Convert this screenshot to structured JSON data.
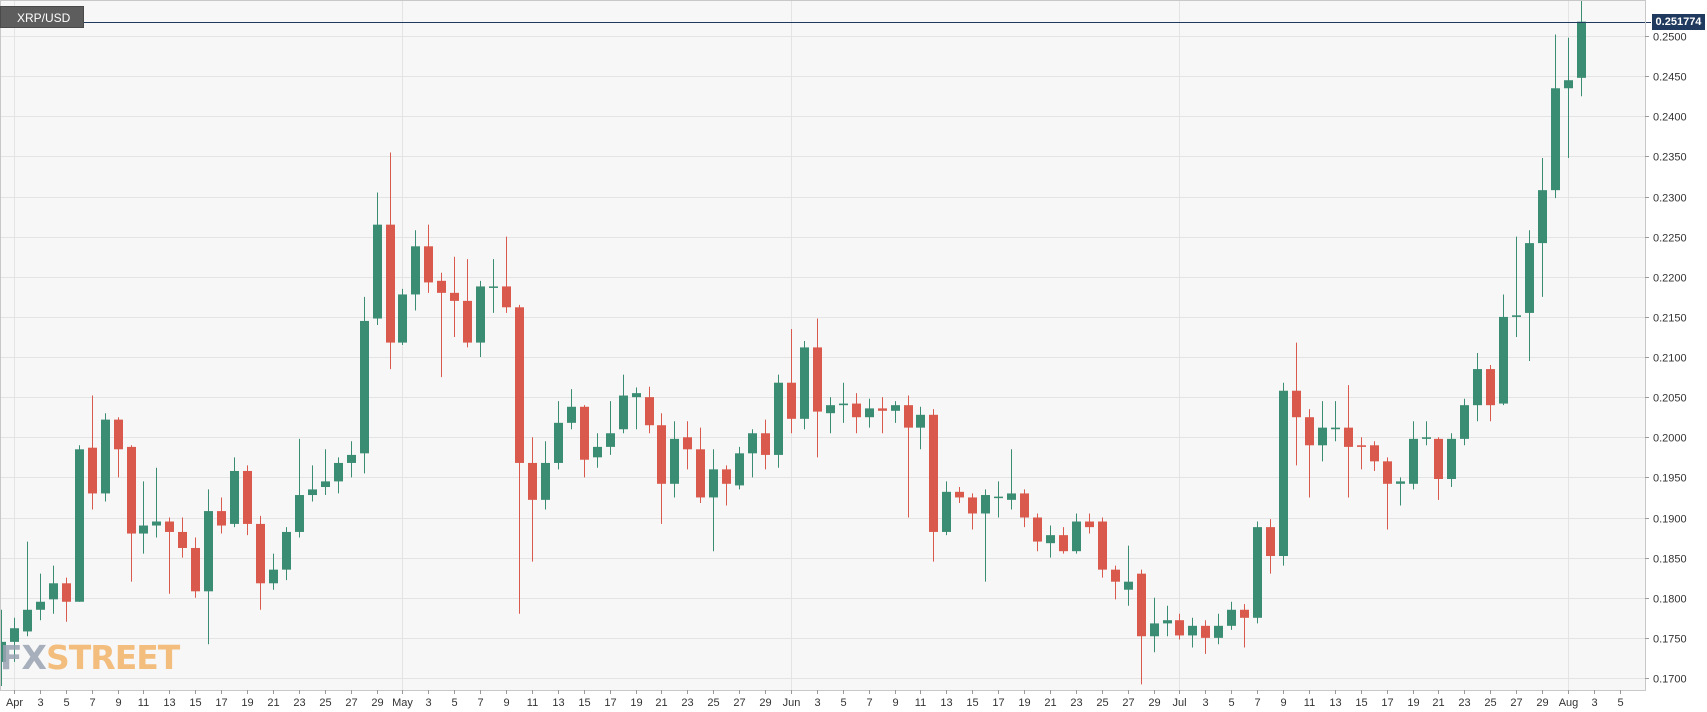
{
  "symbol": "XRP/USD",
  "watermark": {
    "fx": "FX",
    "street": "STREET"
  },
  "last_price_label": "0.251774",
  "colors": {
    "up": "#3a8c72",
    "down": "#d9594c",
    "grid": "#e4e4e4",
    "axis_text": "#333333",
    "price_line": "#1f3a5e",
    "background": "#f7f7f7"
  },
  "chart_data": {
    "type": "candlestick",
    "last_price": 0.251774,
    "ylim": [
      0.1685,
      0.2545
    ],
    "y_ticks": [
      "0.1700",
      "0.1750",
      "0.1800",
      "0.1850",
      "0.1900",
      "0.1950",
      "0.2000",
      "0.2050",
      "0.2100",
      "0.2150",
      "0.2200",
      "0.2250",
      "0.2300",
      "0.2350",
      "0.2400",
      "0.2450",
      "0.2500"
    ],
    "x_tick_labels": [
      {
        "label": "Apr",
        "month": true
      },
      {
        "label": "3"
      },
      {
        "label": "5"
      },
      {
        "label": "7"
      },
      {
        "label": "9"
      },
      {
        "label": "11"
      },
      {
        "label": "13"
      },
      {
        "label": "15"
      },
      {
        "label": "17"
      },
      {
        "label": "19"
      },
      {
        "label": "21"
      },
      {
        "label": "23"
      },
      {
        "label": "25"
      },
      {
        "label": "27"
      },
      {
        "label": "29"
      },
      {
        "label": "May",
        "month": true
      },
      {
        "label": "3"
      },
      {
        "label": "5"
      },
      {
        "label": "7"
      },
      {
        "label": "9"
      },
      {
        "label": "11"
      },
      {
        "label": "13"
      },
      {
        "label": "15"
      },
      {
        "label": "17"
      },
      {
        "label": "19"
      },
      {
        "label": "21"
      },
      {
        "label": "23"
      },
      {
        "label": "25"
      },
      {
        "label": "27"
      },
      {
        "label": "29"
      },
      {
        "label": "Jun",
        "month": true
      },
      {
        "label": "3"
      },
      {
        "label": "5"
      },
      {
        "label": "7"
      },
      {
        "label": "9"
      },
      {
        "label": "11"
      },
      {
        "label": "13"
      },
      {
        "label": "15"
      },
      {
        "label": "17"
      },
      {
        "label": "19"
      },
      {
        "label": "21"
      },
      {
        "label": "23"
      },
      {
        "label": "25"
      },
      {
        "label": "27"
      },
      {
        "label": "29"
      },
      {
        "label": "Jul",
        "month": true
      },
      {
        "label": "3"
      },
      {
        "label": "5"
      },
      {
        "label": "7"
      },
      {
        "label": "9"
      },
      {
        "label": "11"
      },
      {
        "label": "13"
      },
      {
        "label": "15"
      },
      {
        "label": "17"
      },
      {
        "label": "19"
      },
      {
        "label": "21"
      },
      {
        "label": "23"
      },
      {
        "label": "25"
      },
      {
        "label": "27"
      },
      {
        "label": "29"
      },
      {
        "label": "Aug",
        "month": true
      },
      {
        "label": "3"
      },
      {
        "label": "5"
      }
    ],
    "candles": [
      {
        "date": "2020-03-31",
        "o": 0.172,
        "h": 0.1785,
        "l": 0.169,
        "c": 0.1745
      },
      {
        "date": "2020-04-01",
        "o": 0.1745,
        "h": 0.1775,
        "l": 0.172,
        "c": 0.1762
      },
      {
        "date": "2020-04-02",
        "o": 0.1758,
        "h": 0.187,
        "l": 0.1752,
        "c": 0.1785
      },
      {
        "date": "2020-04-03",
        "o": 0.1785,
        "h": 0.183,
        "l": 0.1772,
        "c": 0.1795
      },
      {
        "date": "2020-04-04",
        "o": 0.1798,
        "h": 0.184,
        "l": 0.178,
        "c": 0.1818
      },
      {
        "date": "2020-04-05",
        "o": 0.1818,
        "h": 0.1825,
        "l": 0.177,
        "c": 0.1795
      },
      {
        "date": "2020-04-06",
        "o": 0.1795,
        "h": 0.199,
        "l": 0.1795,
        "c": 0.1985
      },
      {
        "date": "2020-04-07",
        "o": 0.1987,
        "h": 0.2052,
        "l": 0.191,
        "c": 0.193
      },
      {
        "date": "2020-04-08",
        "o": 0.193,
        "h": 0.203,
        "l": 0.192,
        "c": 0.2022
      },
      {
        "date": "2020-04-09",
        "o": 0.2022,
        "h": 0.2025,
        "l": 0.195,
        "c": 0.1985
      },
      {
        "date": "2020-04-10",
        "o": 0.1988,
        "h": 0.199,
        "l": 0.182,
        "c": 0.188
      },
      {
        "date": "2020-04-11",
        "o": 0.188,
        "h": 0.1945,
        "l": 0.1855,
        "c": 0.189
      },
      {
        "date": "2020-04-12",
        "o": 0.189,
        "h": 0.1962,
        "l": 0.1875,
        "c": 0.1895
      },
      {
        "date": "2020-04-13",
        "o": 0.1895,
        "h": 0.19,
        "l": 0.1805,
        "c": 0.1882
      },
      {
        "date": "2020-04-14",
        "o": 0.1882,
        "h": 0.19,
        "l": 0.185,
        "c": 0.1862
      },
      {
        "date": "2020-04-15",
        "o": 0.1862,
        "h": 0.1875,
        "l": 0.18,
        "c": 0.1808
      },
      {
        "date": "2020-04-16",
        "o": 0.1808,
        "h": 0.1935,
        "l": 0.1742,
        "c": 0.1908
      },
      {
        "date": "2020-04-17",
        "o": 0.1908,
        "h": 0.1925,
        "l": 0.188,
        "c": 0.189
      },
      {
        "date": "2020-04-18",
        "o": 0.1892,
        "h": 0.1975,
        "l": 0.1888,
        "c": 0.1958
      },
      {
        "date": "2020-04-19",
        "o": 0.1958,
        "h": 0.1965,
        "l": 0.1878,
        "c": 0.1892
      },
      {
        "date": "2020-04-20",
        "o": 0.1892,
        "h": 0.1902,
        "l": 0.1785,
        "c": 0.1818
      },
      {
        "date": "2020-04-21",
        "o": 0.1818,
        "h": 0.1855,
        "l": 0.181,
        "c": 0.1835
      },
      {
        "date": "2020-04-22",
        "o": 0.1835,
        "h": 0.1888,
        "l": 0.1822,
        "c": 0.1882
      },
      {
        "date": "2020-04-23",
        "o": 0.1882,
        "h": 0.1998,
        "l": 0.1875,
        "c": 0.1928
      },
      {
        "date": "2020-04-24",
        "o": 0.1928,
        "h": 0.1965,
        "l": 0.192,
        "c": 0.1935
      },
      {
        "date": "2020-04-25",
        "o": 0.1938,
        "h": 0.1985,
        "l": 0.1928,
        "c": 0.1945
      },
      {
        "date": "2020-04-26",
        "o": 0.1945,
        "h": 0.1975,
        "l": 0.193,
        "c": 0.1968
      },
      {
        "date": "2020-04-27",
        "o": 0.1968,
        "h": 0.1995,
        "l": 0.195,
        "c": 0.1978
      },
      {
        "date": "2020-04-28",
        "o": 0.198,
        "h": 0.2175,
        "l": 0.1955,
        "c": 0.2145
      },
      {
        "date": "2020-04-29",
        "o": 0.2148,
        "h": 0.2305,
        "l": 0.214,
        "c": 0.2265
      },
      {
        "date": "2020-04-30",
        "o": 0.2265,
        "h": 0.2355,
        "l": 0.2085,
        "c": 0.2118
      },
      {
        "date": "2020-05-01",
        "o": 0.2118,
        "h": 0.2185,
        "l": 0.2115,
        "c": 0.2178
      },
      {
        "date": "2020-05-02",
        "o": 0.2178,
        "h": 0.2258,
        "l": 0.2158,
        "c": 0.2238
      },
      {
        "date": "2020-05-03",
        "o": 0.2238,
        "h": 0.2265,
        "l": 0.218,
        "c": 0.2193
      },
      {
        "date": "2020-05-04",
        "o": 0.2195,
        "h": 0.2205,
        "l": 0.2075,
        "c": 0.218
      },
      {
        "date": "2020-05-05",
        "o": 0.218,
        "h": 0.2225,
        "l": 0.2125,
        "c": 0.217
      },
      {
        "date": "2020-05-06",
        "o": 0.217,
        "h": 0.2222,
        "l": 0.2112,
        "c": 0.2118
      },
      {
        "date": "2020-05-07",
        "o": 0.2118,
        "h": 0.2195,
        "l": 0.21,
        "c": 0.2188
      },
      {
        "date": "2020-05-08",
        "o": 0.2188,
        "h": 0.2222,
        "l": 0.2155,
        "c": 0.2188
      },
      {
        "date": "2020-05-09",
        "o": 0.2188,
        "h": 0.225,
        "l": 0.2155,
        "c": 0.2162
      },
      {
        "date": "2020-05-10",
        "o": 0.2162,
        "h": 0.2165,
        "l": 0.178,
        "c": 0.1968
      },
      {
        "date": "2020-05-11",
        "o": 0.1968,
        "h": 0.2,
        "l": 0.1845,
        "c": 0.1922
      },
      {
        "date": "2020-05-12",
        "o": 0.1922,
        "h": 0.1995,
        "l": 0.191,
        "c": 0.1968
      },
      {
        "date": "2020-05-13",
        "o": 0.1968,
        "h": 0.2045,
        "l": 0.196,
        "c": 0.2018
      },
      {
        "date": "2020-05-14",
        "o": 0.2018,
        "h": 0.206,
        "l": 0.201,
        "c": 0.2038
      },
      {
        "date": "2020-05-15",
        "o": 0.2038,
        "h": 0.204,
        "l": 0.195,
        "c": 0.1972
      },
      {
        "date": "2020-05-16",
        "o": 0.1975,
        "h": 0.2005,
        "l": 0.1962,
        "c": 0.1988
      },
      {
        "date": "2020-05-17",
        "o": 0.1988,
        "h": 0.2045,
        "l": 0.1978,
        "c": 0.2005
      },
      {
        "date": "2020-05-18",
        "o": 0.201,
        "h": 0.2078,
        "l": 0.2005,
        "c": 0.2052
      },
      {
        "date": "2020-05-19",
        "o": 0.205,
        "h": 0.2062,
        "l": 0.201,
        "c": 0.2055
      },
      {
        "date": "2020-05-20",
        "o": 0.205,
        "h": 0.2063,
        "l": 0.2005,
        "c": 0.2015
      },
      {
        "date": "2020-05-21",
        "o": 0.2015,
        "h": 0.203,
        "l": 0.1892,
        "c": 0.1942
      },
      {
        "date": "2020-05-22",
        "o": 0.1942,
        "h": 0.202,
        "l": 0.1925,
        "c": 0.1998
      },
      {
        "date": "2020-05-23",
        "o": 0.2,
        "h": 0.202,
        "l": 0.196,
        "c": 0.1985
      },
      {
        "date": "2020-05-24",
        "o": 0.1985,
        "h": 0.2012,
        "l": 0.1918,
        "c": 0.1925
      },
      {
        "date": "2020-05-25",
        "o": 0.1925,
        "h": 0.1985,
        "l": 0.1858,
        "c": 0.196
      },
      {
        "date": "2020-05-26",
        "o": 0.196,
        "h": 0.1965,
        "l": 0.1915,
        "c": 0.1942
      },
      {
        "date": "2020-05-27",
        "o": 0.194,
        "h": 0.1988,
        "l": 0.1935,
        "c": 0.198
      },
      {
        "date": "2020-05-28",
        "o": 0.198,
        "h": 0.201,
        "l": 0.195,
        "c": 0.2005
      },
      {
        "date": "2020-05-29",
        "o": 0.2005,
        "h": 0.2022,
        "l": 0.196,
        "c": 0.1978
      },
      {
        "date": "2020-05-30",
        "o": 0.1978,
        "h": 0.2078,
        "l": 0.1962,
        "c": 0.2068
      },
      {
        "date": "2020-05-31",
        "o": 0.2068,
        "h": 0.2135,
        "l": 0.2005,
        "c": 0.2023
      },
      {
        "date": "2020-06-01",
        "o": 0.2023,
        "h": 0.212,
        "l": 0.201,
        "c": 0.2112
      },
      {
        "date": "2020-06-02",
        "o": 0.2112,
        "h": 0.2148,
        "l": 0.1975,
        "c": 0.2032
      },
      {
        "date": "2020-06-03",
        "o": 0.203,
        "h": 0.205,
        "l": 0.2005,
        "c": 0.204
      },
      {
        "date": "2020-06-04",
        "o": 0.204,
        "h": 0.2068,
        "l": 0.2018,
        "c": 0.2042
      },
      {
        "date": "2020-06-05",
        "o": 0.2042,
        "h": 0.2055,
        "l": 0.2005,
        "c": 0.2025
      },
      {
        "date": "2020-06-06",
        "o": 0.2025,
        "h": 0.2048,
        "l": 0.2012,
        "c": 0.2036
      },
      {
        "date": "2020-06-07",
        "o": 0.2036,
        "h": 0.205,
        "l": 0.2005,
        "c": 0.2033
      },
      {
        "date": "2020-06-08",
        "o": 0.2033,
        "h": 0.2045,
        "l": 0.2018,
        "c": 0.204
      },
      {
        "date": "2020-06-09",
        "o": 0.204,
        "h": 0.2052,
        "l": 0.19,
        "c": 0.2012
      },
      {
        "date": "2020-06-10",
        "o": 0.2012,
        "h": 0.2038,
        "l": 0.1985,
        "c": 0.2028
      },
      {
        "date": "2020-06-11",
        "o": 0.2028,
        "h": 0.2035,
        "l": 0.1845,
        "c": 0.1882
      },
      {
        "date": "2020-06-12",
        "o": 0.1882,
        "h": 0.1945,
        "l": 0.1878,
        "c": 0.1932
      },
      {
        "date": "2020-06-13",
        "o": 0.1932,
        "h": 0.1938,
        "l": 0.1918,
        "c": 0.1925
      },
      {
        "date": "2020-06-14",
        "o": 0.1925,
        "h": 0.193,
        "l": 0.1885,
        "c": 0.1905
      },
      {
        "date": "2020-06-15",
        "o": 0.1905,
        "h": 0.1935,
        "l": 0.182,
        "c": 0.1928
      },
      {
        "date": "2020-06-16",
        "o": 0.1926,
        "h": 0.1945,
        "l": 0.19,
        "c": 0.1926
      },
      {
        "date": "2020-06-17",
        "o": 0.1922,
        "h": 0.1985,
        "l": 0.191,
        "c": 0.193
      },
      {
        "date": "2020-06-18",
        "o": 0.193,
        "h": 0.1935,
        "l": 0.1888,
        "c": 0.19
      },
      {
        "date": "2020-06-19",
        "o": 0.19,
        "h": 0.1905,
        "l": 0.1858,
        "c": 0.187
      },
      {
        "date": "2020-06-20",
        "o": 0.1868,
        "h": 0.189,
        "l": 0.185,
        "c": 0.1878
      },
      {
        "date": "2020-06-21",
        "o": 0.1878,
        "h": 0.1888,
        "l": 0.1855,
        "c": 0.1858
      },
      {
        "date": "2020-06-22",
        "o": 0.1858,
        "h": 0.1905,
        "l": 0.1855,
        "c": 0.1895
      },
      {
        "date": "2020-06-23",
        "o": 0.1895,
        "h": 0.1905,
        "l": 0.188,
        "c": 0.1888
      },
      {
        "date": "2020-06-24",
        "o": 0.1895,
        "h": 0.19,
        "l": 0.1825,
        "c": 0.1835
      },
      {
        "date": "2020-06-25",
        "o": 0.1835,
        "h": 0.184,
        "l": 0.1798,
        "c": 0.182
      },
      {
        "date": "2020-06-26",
        "o": 0.181,
        "h": 0.1865,
        "l": 0.179,
        "c": 0.182
      },
      {
        "date": "2020-06-27",
        "o": 0.183,
        "h": 0.1835,
        "l": 0.1692,
        "c": 0.1752
      },
      {
        "date": "2020-06-28",
        "o": 0.1752,
        "h": 0.18,
        "l": 0.1732,
        "c": 0.1768
      },
      {
        "date": "2020-06-29",
        "o": 0.1768,
        "h": 0.179,
        "l": 0.1752,
        "c": 0.1772
      },
      {
        "date": "2020-06-30",
        "o": 0.1772,
        "h": 0.178,
        "l": 0.1748,
        "c": 0.1753
      },
      {
        "date": "2020-07-01",
        "o": 0.1753,
        "h": 0.1775,
        "l": 0.1738,
        "c": 0.1765
      },
      {
        "date": "2020-07-02",
        "o": 0.1765,
        "h": 0.1772,
        "l": 0.173,
        "c": 0.175
      },
      {
        "date": "2020-07-03",
        "o": 0.175,
        "h": 0.178,
        "l": 0.1742,
        "c": 0.1765
      },
      {
        "date": "2020-07-04",
        "o": 0.1765,
        "h": 0.1795,
        "l": 0.176,
        "c": 0.1785
      },
      {
        "date": "2020-07-05",
        "o": 0.1785,
        "h": 0.1792,
        "l": 0.1738,
        "c": 0.1775
      },
      {
        "date": "2020-07-06",
        "o": 0.1775,
        "h": 0.1895,
        "l": 0.1768,
        "c": 0.1888
      },
      {
        "date": "2020-07-07",
        "o": 0.1888,
        "h": 0.1898,
        "l": 0.183,
        "c": 0.1852
      },
      {
        "date": "2020-07-08",
        "o": 0.1852,
        "h": 0.2068,
        "l": 0.184,
        "c": 0.2058
      },
      {
        "date": "2020-07-09",
        "o": 0.2058,
        "h": 0.2118,
        "l": 0.1965,
        "c": 0.2025
      },
      {
        "date": "2020-07-10",
        "o": 0.2025,
        "h": 0.2035,
        "l": 0.1925,
        "c": 0.199
      },
      {
        "date": "2020-07-11",
        "o": 0.199,
        "h": 0.2045,
        "l": 0.197,
        "c": 0.2012
      },
      {
        "date": "2020-07-12",
        "o": 0.201,
        "h": 0.2045,
        "l": 0.1995,
        "c": 0.2012
      },
      {
        "date": "2020-07-13",
        "o": 0.2012,
        "h": 0.2065,
        "l": 0.1925,
        "c": 0.1988
      },
      {
        "date": "2020-07-14",
        "o": 0.199,
        "h": 0.2,
        "l": 0.196,
        "c": 0.1988
      },
      {
        "date": "2020-07-15",
        "o": 0.199,
        "h": 0.1995,
        "l": 0.1958,
        "c": 0.197
      },
      {
        "date": "2020-07-16",
        "o": 0.197,
        "h": 0.1975,
        "l": 0.1885,
        "c": 0.1942
      },
      {
        "date": "2020-07-17",
        "o": 0.1942,
        "h": 0.195,
        "l": 0.1915,
        "c": 0.1945
      },
      {
        "date": "2020-07-18",
        "o": 0.1942,
        "h": 0.202,
        "l": 0.1935,
        "c": 0.1998
      },
      {
        "date": "2020-07-19",
        "o": 0.1998,
        "h": 0.202,
        "l": 0.199,
        "c": 0.2
      },
      {
        "date": "2020-07-20",
        "o": 0.1998,
        "h": 0.2,
        "l": 0.1922,
        "c": 0.1948
      },
      {
        "date": "2020-07-21",
        "o": 0.1948,
        "h": 0.2005,
        "l": 0.1938,
        "c": 0.1998
      },
      {
        "date": "2020-07-22",
        "o": 0.1998,
        "h": 0.2048,
        "l": 0.199,
        "c": 0.204
      },
      {
        "date": "2020-07-23",
        "o": 0.204,
        "h": 0.2105,
        "l": 0.202,
        "c": 0.2085
      },
      {
        "date": "2020-07-24",
        "o": 0.2085,
        "h": 0.209,
        "l": 0.202,
        "c": 0.204
      },
      {
        "date": "2020-07-25",
        "o": 0.2042,
        "h": 0.2178,
        "l": 0.204,
        "c": 0.215
      },
      {
        "date": "2020-07-26",
        "o": 0.215,
        "h": 0.225,
        "l": 0.2125,
        "c": 0.2152
      },
      {
        "date": "2020-07-27",
        "o": 0.2155,
        "h": 0.2258,
        "l": 0.2095,
        "c": 0.2242
      },
      {
        "date": "2020-07-28",
        "o": 0.2242,
        "h": 0.2348,
        "l": 0.2175,
        "c": 0.2308
      },
      {
        "date": "2020-07-29",
        "o": 0.2308,
        "h": 0.2502,
        "l": 0.2298,
        "c": 0.2435
      },
      {
        "date": "2020-07-30",
        "o": 0.2435,
        "h": 0.2498,
        "l": 0.2348,
        "c": 0.2445
      },
      {
        "date": "2020-07-31",
        "o": 0.2448,
        "h": 0.2548,
        "l": 0.2425,
        "c": 0.2518
      }
    ]
  }
}
